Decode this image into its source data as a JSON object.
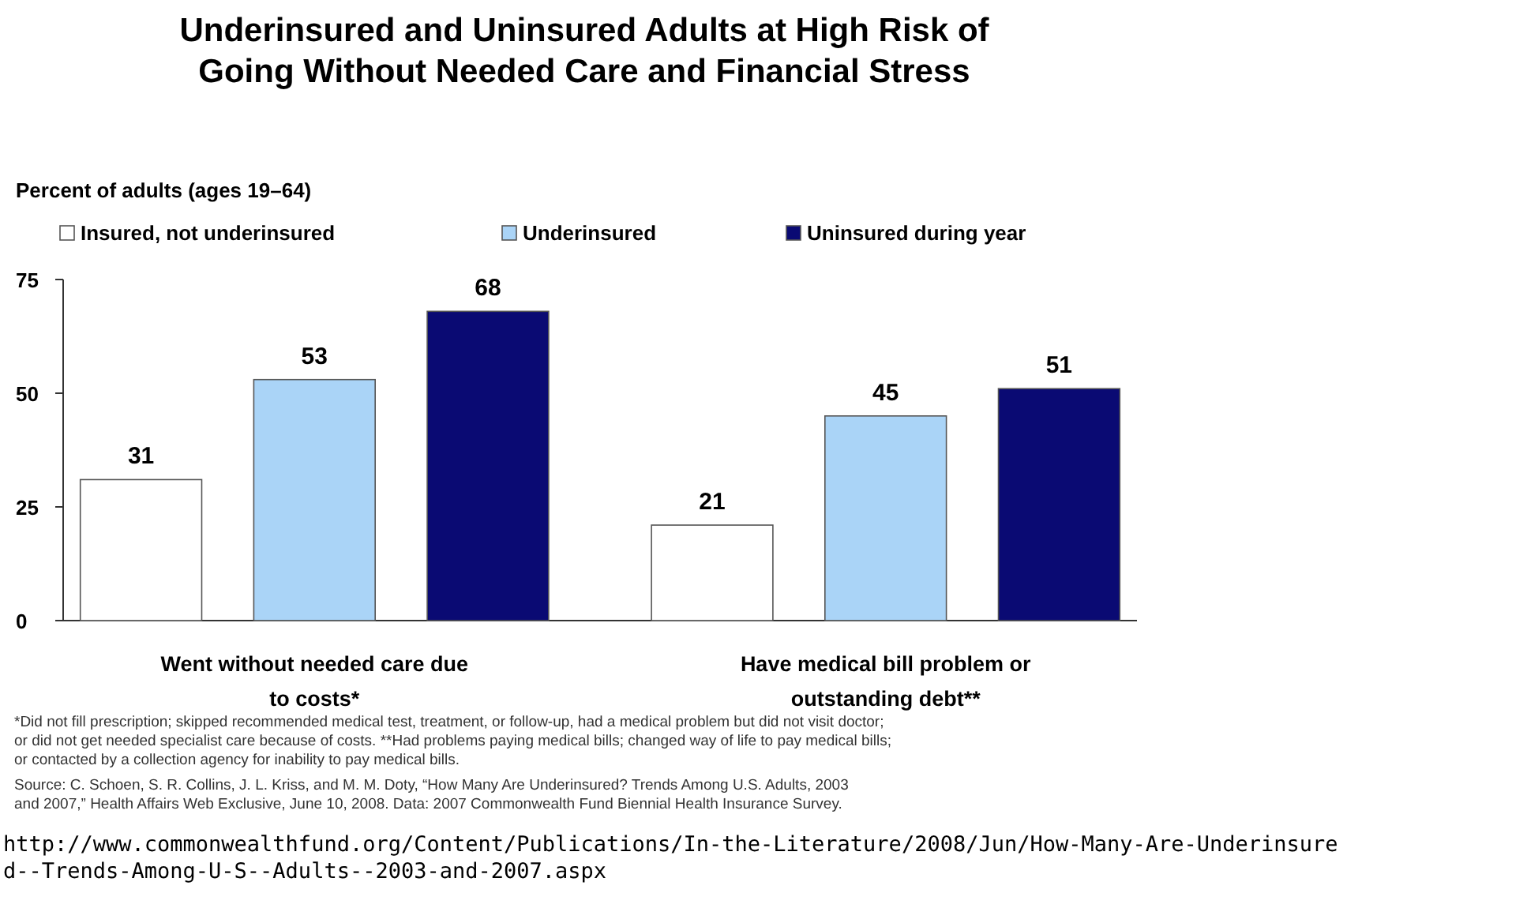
{
  "chart_data": {
    "type": "bar",
    "title": "Underinsured and Uninsured Adults at High Risk of Going Without Needed Care and Financial Stress",
    "ylabel": "Percent of adults (ages 19–64)",
    "categories": [
      "Went without needed care due to costs*",
      "Have medical bill problem or outstanding debt**"
    ],
    "series": [
      {
        "name": "Insured, not underinsured",
        "color": "#ffffff",
        "values": [
          31,
          21
        ]
      },
      {
        "name": "Underinsured",
        "color": "#aad4f7",
        "values": [
          53,
          45
        ]
      },
      {
        "name": "Uninsured during year",
        "color": "#0a0a73",
        "values": [
          68,
          51
        ]
      }
    ],
    "ylim": [
      0,
      75
    ],
    "yticks": [
      0,
      25,
      50,
      75
    ],
    "grid": false,
    "legend": "top",
    "data_labels": true,
    "annotations": [
      "*Did not fill prescription; skipped recommended medical test, treatment, or follow-up, had a medical problem but did not visit doctor;",
      "or did not get needed specialist care because of costs. **Had problems paying medical bills; changed way of life to pay medical bills;",
      "or contacted by a collection agency for inability to pay medical bills.",
      "Source: C. Schoen, S. R. Collins, J. L. Kriss, and M. M. Doty, “How Many Are Underinsured? Trends Among U.S. Adults, 2003",
      "and 2007,” Health Affairs Web Exclusive, June 10, 2008. Data: 2007 Commonwealth Fund Biennial Health Insurance Survey.",
      "http://www.commonwealthfund.org/Content/Publications/In-the-Literature/2008/Jun/How-Many-Are-Underinsure",
      "d--Trends-Among-U-S--Adults--2003-and-2007.aspx"
    ]
  }
}
